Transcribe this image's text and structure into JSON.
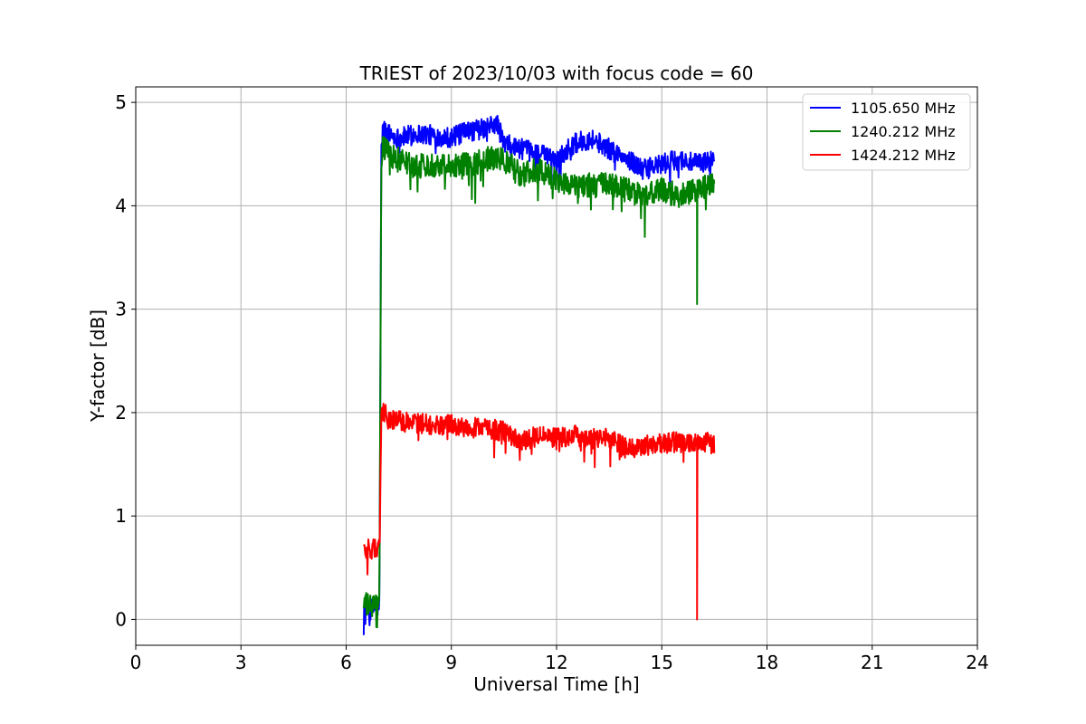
{
  "chart_data": {
    "type": "line",
    "title": "TRIEST of 2023/10/03 with focus code = 60",
    "xlabel": "Universal Time [h]",
    "ylabel": "Y-factor [dB]",
    "xlim": [
      0,
      24
    ],
    "ylim": [
      -0.25,
      5.15
    ],
    "xticks": [
      0,
      3,
      6,
      9,
      12,
      15,
      18,
      21,
      24
    ],
    "yticks": [
      0,
      1,
      2,
      3,
      4,
      5
    ],
    "grid": true,
    "legend_position": "top-right",
    "series": [
      {
        "name": "1105.650 MHz",
        "color": "#0000ff",
        "noise": 0.1,
        "x": [
          6.5,
          6.7,
          6.95,
          7.0,
          7.05,
          7.2,
          7.5,
          8.0,
          8.5,
          9.0,
          9.5,
          10.0,
          10.3,
          10.5,
          11.0,
          11.5,
          12.0,
          12.5,
          13.0,
          13.5,
          14.0,
          14.5,
          15.0,
          15.5,
          16.0,
          16.5
        ],
        "y": [
          0.08,
          0.1,
          0.12,
          4.5,
          4.75,
          4.7,
          4.65,
          4.7,
          4.68,
          4.66,
          4.72,
          4.75,
          4.8,
          4.6,
          4.55,
          4.5,
          4.45,
          4.6,
          4.65,
          4.55,
          4.45,
          4.35,
          4.4,
          4.45,
          4.4,
          4.45
        ]
      },
      {
        "name": "1240.212 MHz",
        "color": "#008000",
        "noise": 0.12,
        "spikes": [
          {
            "x": 16.0,
            "y": 3.05
          }
        ],
        "x": [
          6.5,
          6.7,
          6.95,
          7.0,
          7.05,
          7.2,
          7.5,
          8.0,
          8.5,
          9.0,
          9.5,
          10.0,
          10.5,
          11.0,
          11.5,
          12.0,
          12.5,
          13.0,
          13.5,
          14.0,
          14.5,
          15.0,
          15.5,
          16.0,
          16.5
        ],
        "y": [
          0.15,
          0.12,
          0.15,
          4.4,
          4.6,
          4.5,
          4.45,
          4.38,
          4.4,
          4.4,
          4.4,
          4.45,
          4.45,
          4.3,
          4.35,
          4.25,
          4.2,
          4.2,
          4.2,
          4.15,
          4.1,
          4.15,
          4.1,
          4.15,
          4.2
        ]
      },
      {
        "name": "1424.212 MHz",
        "color": "#ff0000",
        "noise": 0.1,
        "spikes": [
          {
            "x": 16.0,
            "y": 0.0
          }
        ],
        "x": [
          6.5,
          6.7,
          6.95,
          7.0,
          7.05,
          7.2,
          7.5,
          8.0,
          8.5,
          9.0,
          9.5,
          10.0,
          10.5,
          11.0,
          11.5,
          12.0,
          12.5,
          13.0,
          13.5,
          14.0,
          14.5,
          15.0,
          15.5,
          16.0,
          16.5
        ],
        "y": [
          0.7,
          0.68,
          0.68,
          1.95,
          2.0,
          1.95,
          1.92,
          1.9,
          1.88,
          1.88,
          1.85,
          1.85,
          1.82,
          1.72,
          1.78,
          1.75,
          1.78,
          1.75,
          1.75,
          1.65,
          1.68,
          1.7,
          1.72,
          1.72,
          1.7
        ]
      }
    ]
  }
}
